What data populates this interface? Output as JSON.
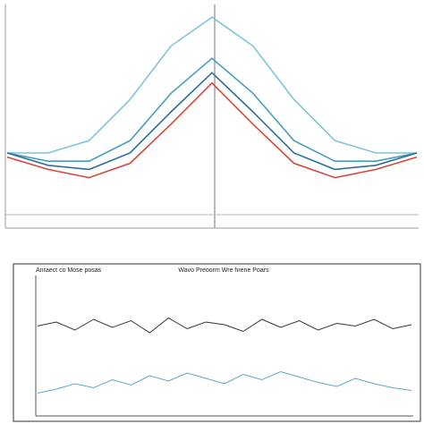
{
  "chart_data": [
    {
      "type": "line",
      "x": [
        0,
        1,
        2,
        3,
        4,
        5,
        6,
        7,
        8,
        9,
        10
      ],
      "xlim": [
        0,
        10
      ],
      "ylim": [
        0,
        10
      ],
      "series": [
        {
          "color": "#7fc3da",
          "values": [
            3.0,
            3.0,
            3.6,
            5.6,
            8.2,
            9.6,
            8.2,
            5.6,
            3.6,
            3.0,
            3.0
          ]
        },
        {
          "color": "#4a9cc0",
          "values": [
            3.0,
            2.6,
            2.6,
            3.6,
            5.9,
            7.6,
            5.9,
            3.6,
            2.6,
            2.6,
            3.0
          ]
        },
        {
          "color": "#2d6f9a",
          "values": [
            3.0,
            2.4,
            2.2,
            3.0,
            5.0,
            6.9,
            5.0,
            3.0,
            2.2,
            2.4,
            3.0
          ]
        },
        {
          "color": "#d9463c",
          "values": [
            2.8,
            2.2,
            1.8,
            2.5,
            4.4,
            6.4,
            4.4,
            2.5,
            1.8,
            2.2,
            2.8
          ]
        }
      ]
    },
    {
      "type": "line",
      "title": "Wavo Preoorm Wre hrene Poars",
      "subtitle": "Anraect co Mose posas",
      "x": [
        0,
        1,
        2,
        3,
        4,
        5,
        6,
        7,
        8,
        9,
        10,
        11,
        12,
        13,
        14,
        15,
        16,
        17,
        18,
        19,
        20
      ],
      "xlim": [
        0,
        20
      ],
      "ylim": [
        0,
        10
      ],
      "series": [
        {
          "color": "#333333",
          "values": [
            6.5,
            6.8,
            6.2,
            7.0,
            6.4,
            6.9,
            6.0,
            7.1,
            6.3,
            6.8,
            6.6,
            6.1,
            7.0,
            6.4,
            6.9,
            6.2,
            6.7,
            6.5,
            7.0,
            6.3,
            6.6
          ]
        },
        {
          "color": "#5aa9c8",
          "values": [
            1.5,
            1.8,
            2.2,
            1.9,
            2.5,
            2.1,
            2.8,
            2.4,
            3.0,
            2.6,
            2.2,
            2.9,
            2.5,
            3.1,
            2.7,
            2.3,
            2.0,
            2.6,
            2.2,
            1.9,
            1.7
          ]
        }
      ]
    }
  ]
}
